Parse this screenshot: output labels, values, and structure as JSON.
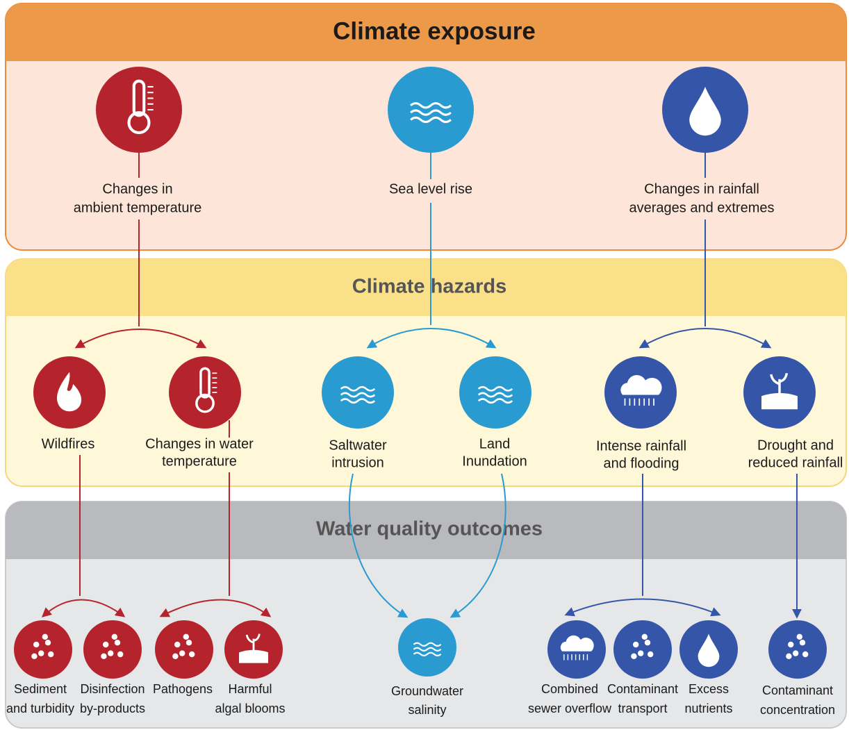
{
  "sections": {
    "exposure": {
      "title": "Climate exposure",
      "nodes": [
        {
          "label": [
            "Changes in",
            "ambient temperature"
          ]
        },
        {
          "label": [
            "Sea level rise"
          ]
        },
        {
          "label": [
            "Changes in rainfall",
            "averages and extremes"
          ]
        }
      ]
    },
    "hazards": {
      "title": "Climate hazards",
      "nodes": [
        {
          "label": [
            "Wildfires"
          ]
        },
        {
          "label": [
            "Changes in water",
            "temperature"
          ]
        },
        {
          "label": [
            "Saltwater",
            "intrusion"
          ]
        },
        {
          "label": [
            "Land",
            "Inundation"
          ]
        },
        {
          "label": [
            "Intense rainfall",
            "and flooding"
          ]
        },
        {
          "label": [
            "Drought and",
            "reduced rainfall"
          ]
        }
      ]
    },
    "outcomes": {
      "title": "Water quality outcomes",
      "nodes": [
        {
          "label": [
            "Sediment",
            "and turbidity"
          ]
        },
        {
          "label": [
            "Disinfection",
            "by-products"
          ]
        },
        {
          "label": [
            "Pathogens"
          ]
        },
        {
          "label": [
            "Harmful",
            "algal blooms"
          ]
        },
        {
          "label": [
            "Groundwater",
            "salinity"
          ]
        },
        {
          "label": [
            "Combined",
            "sewer overflow"
          ]
        },
        {
          "label": [
            "Contaminant",
            "transport"
          ]
        },
        {
          "label": [
            "Excess",
            "nutrients"
          ]
        },
        {
          "label": [
            "Contaminant",
            "concentration"
          ]
        }
      ]
    }
  }
}
